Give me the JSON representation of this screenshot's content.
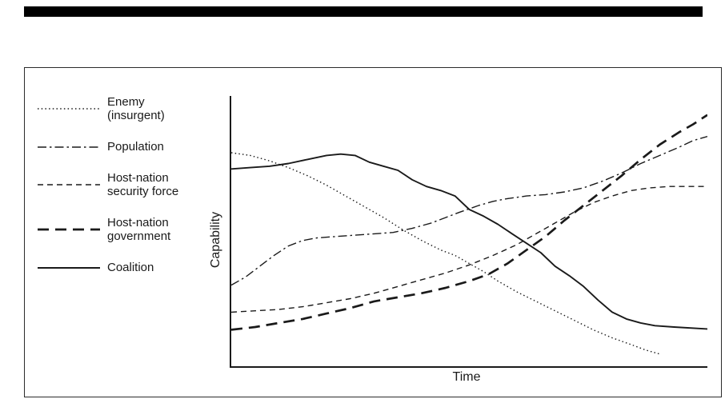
{
  "page": {
    "background": "#ffffff",
    "top_bar_color": "#000000",
    "frame_border_color": "#2b2b2b"
  },
  "chart_data": {
    "type": "line",
    "title": "",
    "xlabel": "Time",
    "ylabel": "Capability",
    "xlim": [
      0,
      100
    ],
    "ylim": [
      0,
      100
    ],
    "grid": false,
    "legend_position": "left",
    "axis_color": "#1a1a1a",
    "x_ticks": [],
    "y_ticks": [],
    "series": [
      {
        "id": "enemy",
        "name": "Enemy (insurgent)",
        "color": "#1a1a1a",
        "dash": "1.5 3.2",
        "width": 1.4,
        "points": [
          [
            0,
            79
          ],
          [
            4,
            78
          ],
          [
            8,
            76
          ],
          [
            12,
            73.5
          ],
          [
            16,
            70.5
          ],
          [
            20,
            67
          ],
          [
            24,
            63
          ],
          [
            28,
            59
          ],
          [
            32,
            55
          ],
          [
            36,
            50.5
          ],
          [
            40,
            46.5
          ],
          [
            44,
            43
          ],
          [
            47,
            41
          ],
          [
            50,
            38
          ],
          [
            53,
            35
          ],
          [
            56,
            31.5
          ],
          [
            60,
            27.5
          ],
          [
            64,
            24
          ],
          [
            68,
            20.5
          ],
          [
            72,
            17
          ],
          [
            76,
            13.5
          ],
          [
            80,
            10.5
          ],
          [
            84,
            8
          ],
          [
            87,
            6
          ],
          [
            90,
            4.5
          ]
        ]
      },
      {
        "id": "population",
        "name": "Population",
        "color": "#1a1a1a",
        "dash": "11 4 2.5 4",
        "width": 1.4,
        "points": [
          [
            0,
            30
          ],
          [
            3,
            33
          ],
          [
            6,
            37
          ],
          [
            9,
            41
          ],
          [
            12,
            44.5
          ],
          [
            15,
            46.5
          ],
          [
            18,
            47.5
          ],
          [
            22,
            48
          ],
          [
            26,
            48.5
          ],
          [
            30,
            49
          ],
          [
            34,
            49.5
          ],
          [
            38,
            51
          ],
          [
            42,
            53
          ],
          [
            45,
            55
          ],
          [
            48,
            57
          ],
          [
            52,
            59.5
          ],
          [
            55,
            61
          ],
          [
            58,
            62
          ],
          [
            62,
            63
          ],
          [
            66,
            63.5
          ],
          [
            70,
            64.5
          ],
          [
            74,
            66
          ],
          [
            78,
            68.5
          ],
          [
            82,
            71.5
          ],
          [
            86,
            75
          ],
          [
            90,
            78
          ],
          [
            94,
            81
          ],
          [
            97,
            83.5
          ],
          [
            100,
            85
          ]
        ]
      },
      {
        "id": "hn-security",
        "name": "Host-nation security force",
        "color": "#1a1a1a",
        "dash": "7 5",
        "width": 1.4,
        "points": [
          [
            0,
            20
          ],
          [
            5,
            20.5
          ],
          [
            10,
            21
          ],
          [
            15,
            22
          ],
          [
            20,
            23.5
          ],
          [
            25,
            25
          ],
          [
            30,
            27
          ],
          [
            35,
            29.5
          ],
          [
            40,
            32
          ],
          [
            45,
            34.5
          ],
          [
            50,
            37.5
          ],
          [
            55,
            41
          ],
          [
            60,
            45
          ],
          [
            64,
            49
          ],
          [
            68,
            53
          ],
          [
            72,
            57
          ],
          [
            76,
            60.5
          ],
          [
            80,
            63
          ],
          [
            84,
            65
          ],
          [
            88,
            66
          ],
          [
            92,
            66.5
          ],
          [
            100,
            66.5
          ]
        ]
      },
      {
        "id": "hn-government",
        "name": "Host-nation government",
        "color": "#1a1a1a",
        "dash": "14 8",
        "width": 2.7,
        "points": [
          [
            0,
            13.5
          ],
          [
            5,
            14.5
          ],
          [
            10,
            16
          ],
          [
            15,
            17.5
          ],
          [
            20,
            19.5
          ],
          [
            25,
            21.5
          ],
          [
            30,
            24
          ],
          [
            35,
            25.5
          ],
          [
            40,
            27
          ],
          [
            45,
            29
          ],
          [
            50,
            31.5
          ],
          [
            54,
            34
          ],
          [
            58,
            38
          ],
          [
            62,
            43
          ],
          [
            66,
            48
          ],
          [
            70,
            54
          ],
          [
            74,
            59.5
          ],
          [
            78,
            65
          ],
          [
            82,
            70.5
          ],
          [
            86,
            76.5
          ],
          [
            90,
            82
          ],
          [
            94,
            86.5
          ],
          [
            97,
            89.5
          ],
          [
            100,
            93
          ]
        ]
      },
      {
        "id": "coalition",
        "name": "Coalition",
        "color": "#1a1a1a",
        "dash": "",
        "width": 1.9,
        "points": [
          [
            0,
            73
          ],
          [
            4,
            73.5
          ],
          [
            8,
            74
          ],
          [
            12,
            75
          ],
          [
            16,
            76.5
          ],
          [
            20,
            78
          ],
          [
            23,
            78.5
          ],
          [
            26,
            78
          ],
          [
            29,
            75.5
          ],
          [
            32,
            74
          ],
          [
            35,
            72.5
          ],
          [
            38,
            69
          ],
          [
            41,
            66.5
          ],
          [
            44,
            65
          ],
          [
            47,
            63
          ],
          [
            50,
            58
          ],
          [
            53,
            55.5
          ],
          [
            56,
            52.5
          ],
          [
            59,
            49
          ],
          [
            62,
            45.5
          ],
          [
            65,
            42
          ],
          [
            68,
            37
          ],
          [
            71,
            33.5
          ],
          [
            74,
            29.5
          ],
          [
            77,
            24.5
          ],
          [
            80,
            20
          ],
          [
            83,
            17.5
          ],
          [
            86,
            16
          ],
          [
            89,
            15
          ],
          [
            93,
            14.5
          ],
          [
            100,
            13.8
          ]
        ]
      }
    ]
  }
}
